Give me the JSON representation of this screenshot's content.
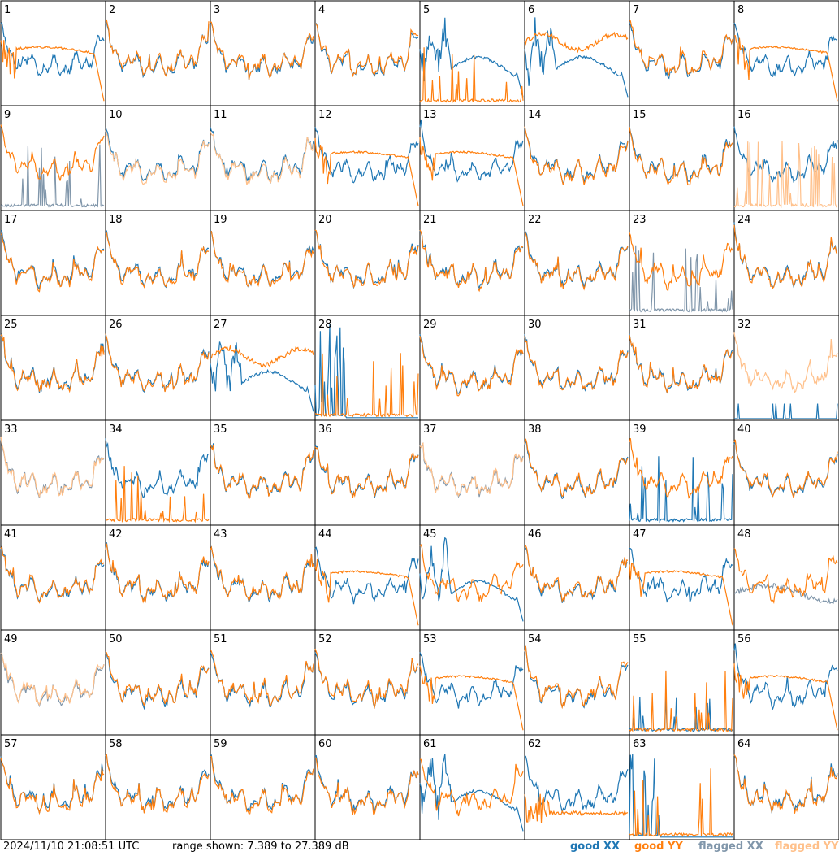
{
  "chart_data": {
    "type": "line",
    "panel_labels": [
      "1",
      "2",
      "3",
      "4",
      "5",
      "6",
      "7",
      "8",
      "9",
      "10",
      "11",
      "12",
      "13",
      "14",
      "15",
      "16",
      "17",
      "18",
      "19",
      "20",
      "21",
      "22",
      "23",
      "24",
      "25",
      "26",
      "27",
      "28",
      "29",
      "30",
      "31",
      "32",
      "33",
      "34",
      "35",
      "36",
      "37",
      "38",
      "39",
      "40",
      "41",
      "42",
      "43",
      "44",
      "45",
      "46",
      "47",
      "48",
      "49",
      "50",
      "51",
      "52",
      "53",
      "54",
      "55",
      "56",
      "57",
      "58",
      "59",
      "60",
      "61",
      "62",
      "63",
      "64"
    ],
    "ylim": [
      7.389,
      27.389
    ],
    "colors": {
      "good_xx": "#1f77b4",
      "good_yy": "#ff7f0e",
      "flagged_xx": "#8096aa",
      "flagged_yy": "#ffc08a"
    },
    "tiles": {
      "flagged_xx": [
        9,
        23,
        33,
        37,
        48,
        49
      ],
      "flagged_yy": [
        10,
        11,
        16,
        32,
        33,
        37,
        49
      ],
      "xx_profile": {
        "bowl": [
          5,
          6,
          27,
          45,
          61
        ],
        "low_wide": [
          48
        ],
        "spiky_low": [
          9,
          23,
          39,
          55
        ],
        "dropout": [
          28,
          63
        ],
        "mostly_empty": [
          32
        ]
      },
      "yy_profile": {
        "rolloff": [
          1,
          8,
          12,
          13,
          44,
          47,
          53,
          56
        ],
        "spiky_low": [
          5,
          16,
          28,
          34,
          55,
          63
        ],
        "bowl_high": [
          6,
          27
        ],
        "lower_band": [
          62
        ]
      }
    }
  },
  "footer": {
    "timestamp": "2024/11/10 21:08:51 UTC",
    "range_label": "range shown:",
    "range_value": "7.389 to 27.389",
    "range_unit": "dB"
  },
  "legend": {
    "good_xx": "good XX",
    "good_yy": "good YY",
    "flagged_xx": "flagged XX",
    "flagged_yy": "flagged YY"
  }
}
